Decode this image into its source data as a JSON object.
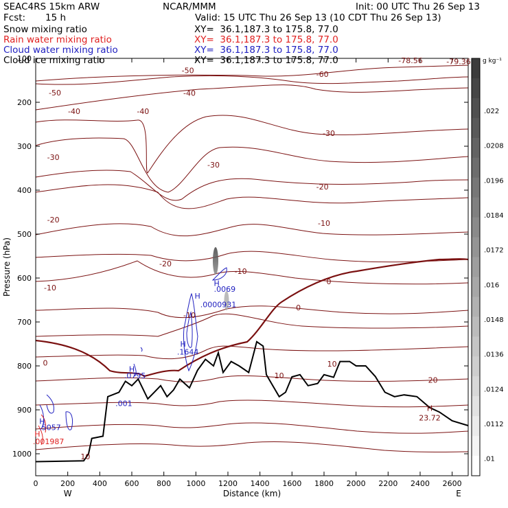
{
  "header": {
    "model": "SEAC4RS 15km ARW",
    "center": "NCAR/MMM",
    "init": "Init: 00 UTC Thu 26 Sep 13",
    "fcst_label": "Fcst:",
    "fcst_value": "15 h",
    "valid": "Valid: 15 UTC Thu 26 Sep 13 (10 CDT Thu 26 Sep 13)",
    "xy": "XY=  36.1,187.3 to 175.8, 77.0"
  },
  "fields": [
    {
      "name": "Snow mixing ratio",
      "color": "#000000"
    },
    {
      "name": "Rain water mixing ratio",
      "color": "#e02020"
    },
    {
      "name": "Cloud water mixing ratio",
      "color": "#2020c0"
    },
    {
      "name": "Cloud ice mixing ratio",
      "color": "#000000"
    }
  ],
  "colorbar": {
    "unit": "g kg⁻¹",
    "labels": [
      ".022",
      ".0208",
      ".0196",
      ".0184",
      ".0172",
      ".016",
      ".0148",
      ".0136",
      ".0124",
      ".0112",
      ".01"
    ]
  },
  "chart_data": {
    "type": "contour",
    "xlabel": "Distance (km)",
    "ylabel": "Pressure (hPa)",
    "xlim": [
      0,
      2700
    ],
    "ylim": [
      1050,
      100
    ],
    "x_ticks": [
      0,
      200,
      400,
      600,
      800,
      1000,
      1200,
      1400,
      1600,
      1800,
      2000,
      2200,
      2400,
      2600
    ],
    "y_ticks": [
      100,
      200,
      300,
      400,
      500,
      600,
      700,
      800,
      900,
      1000
    ],
    "x_end_labels": {
      "left": "W",
      "right": "E"
    },
    "temperature_contour_labels": [
      {
        "text": "-50",
        "x": 950,
        "y": 127
      },
      {
        "text": "-60",
        "x": 1790,
        "y": 136
      },
      {
        "text": "-78.56",
        "x": 2340,
        "y": 105
      },
      {
        "text": "-79.36",
        "x": 2640,
        "y": 107
      },
      {
        "text": "-50",
        "x": 120,
        "y": 178
      },
      {
        "text": "-40",
        "x": 960,
        "y": 179
      },
      {
        "text": "-40",
        "x": 240,
        "y": 220
      },
      {
        "text": "-40",
        "x": 670,
        "y": 220
      },
      {
        "text": "-30",
        "x": 1830,
        "y": 270
      },
      {
        "text": "-30",
        "x": 110,
        "y": 325
      },
      {
        "text": "-30",
        "x": 1110,
        "y": 342
      },
      {
        "text": "-20",
        "x": 1790,
        "y": 392
      },
      {
        "text": "-20",
        "x": 110,
        "y": 467
      },
      {
        "text": "-10",
        "x": 1800,
        "y": 475
      },
      {
        "text": "-20",
        "x": 810,
        "y": 567
      },
      {
        "text": "-10",
        "x": 1280,
        "y": 584
      },
      {
        "text": "-10",
        "x": 90,
        "y": 622
      },
      {
        "text": "0",
        "x": 1830,
        "y": 608
      },
      {
        "text": "0",
        "x": 1640,
        "y": 667
      },
      {
        "text": "-10",
        "x": 960,
        "y": 684
      },
      {
        "text": "0",
        "x": 60,
        "y": 793
      },
      {
        "text": "10",
        "x": 1850,
        "y": 795
      },
      {
        "text": "10",
        "x": 1520,
        "y": 822
      },
      {
        "text": "20",
        "x": 2480,
        "y": 832
      },
      {
        "text": "10",
        "x": 310,
        "y": 1006
      }
    ],
    "cloud_water_labels": [
      {
        "text": "H",
        "x": 1130,
        "y": 612
      },
      {
        "text": ".0069",
        "x": 1180,
        "y": 625
      },
      {
        "text": "H",
        "x": 1010,
        "y": 641
      },
      {
        "text": ".0000931",
        "x": 1140,
        "y": 660
      },
      {
        "text": "H",
        "x": 920,
        "y": 750
      },
      {
        "text": ".1644",
        "x": 950,
        "y": 768
      },
      {
        "text": "H",
        "x": 600,
        "y": 807
      },
      {
        "text": ".0795",
        "x": 620,
        "y": 822
      },
      {
        "text": ".001",
        "x": 550,
        "y": 885
      },
      {
        "text": "H",
        "x": 40,
        "y": 926
      },
      {
        "text": ".5057",
        "x": 90,
        "y": 940
      }
    ],
    "rain_water_labels": [
      {
        "text": "H",
        "x": 10,
        "y": 955
      },
      {
        "text": ".001987",
        "x": 80,
        "y": 972
      }
    ],
    "max_label": {
      "text": "H",
      "value": "23.72",
      "x": 2460,
      "y": 915
    },
    "terrain_pressure": [
      [
        0,
        1018
      ],
      [
        300,
        1016
      ],
      [
        330,
        1000
      ],
      [
        350,
        965
      ],
      [
        420,
        960
      ],
      [
        450,
        870
      ],
      [
        520,
        860
      ],
      [
        560,
        835
      ],
      [
        600,
        845
      ],
      [
        640,
        830
      ],
      [
        700,
        875
      ],
      [
        740,
        860
      ],
      [
        780,
        845
      ],
      [
        820,
        870
      ],
      [
        860,
        855
      ],
      [
        900,
        830
      ],
      [
        960,
        850
      ],
      [
        1010,
        810
      ],
      [
        1060,
        785
      ],
      [
        1110,
        800
      ],
      [
        1140,
        770
      ],
      [
        1170,
        815
      ],
      [
        1220,
        790
      ],
      [
        1270,
        800
      ],
      [
        1330,
        815
      ],
      [
        1380,
        745
      ],
      [
        1420,
        755
      ],
      [
        1440,
        820
      ],
      [
        1480,
        845
      ],
      [
        1520,
        870
      ],
      [
        1560,
        860
      ],
      [
        1600,
        825
      ],
      [
        1650,
        820
      ],
      [
        1700,
        845
      ],
      [
        1760,
        840
      ],
      [
        1800,
        820
      ],
      [
        1860,
        826
      ],
      [
        1900,
        790
      ],
      [
        1960,
        790
      ],
      [
        2000,
        800
      ],
      [
        2060,
        800
      ],
      [
        2120,
        824
      ],
      [
        2180,
        860
      ],
      [
        2240,
        870
      ],
      [
        2300,
        866
      ],
      [
        2380,
        870
      ],
      [
        2460,
        895
      ],
      [
        2520,
        905
      ],
      [
        2600,
        925
      ],
      [
        2700,
        936
      ]
    ]
  }
}
